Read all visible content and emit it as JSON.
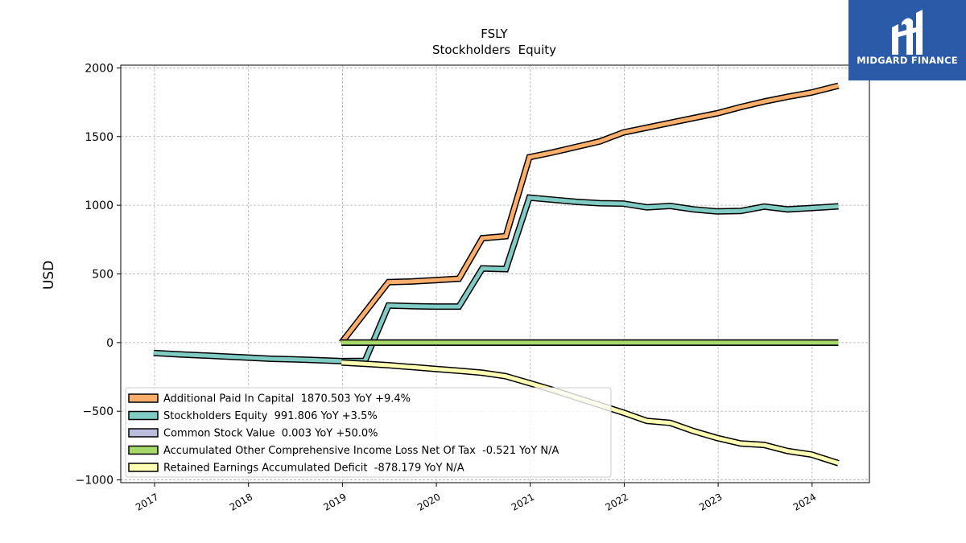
{
  "logo": {
    "text": "MIDGARD FINANCE",
    "icon": "midgard-logo-icon",
    "color": "#2a5aa8"
  },
  "chart_data": {
    "type": "line",
    "title": "FSLY",
    "subtitle": "Stockholders  Equity",
    "xlabel": "",
    "ylabel": "USD",
    "xlim": [
      2016.64,
      2024.61
    ],
    "ylim": [
      -1020,
      2020
    ],
    "xticks": [
      2017,
      2018,
      2019,
      2020,
      2021,
      2022,
      2023,
      2024
    ],
    "xtick_labels": [
      "2017",
      "2018",
      "2019",
      "2020",
      "2021",
      "2022",
      "2023",
      "2024"
    ],
    "yticks": [
      -1000,
      -500,
      0,
      500,
      1000,
      1500,
      2000
    ],
    "ytick_labels": [
      "−1000",
      "−500",
      "0",
      "500",
      "1000",
      "1500",
      "2000"
    ],
    "grid": true,
    "legend_position": "lower-left",
    "series": [
      {
        "name": "Additional Paid In Capital",
        "legend": "Additional Paid In Capital  1870.503 YoY +9.4%",
        "color": "#fdae6b",
        "points": [
          [
            2018.99,
            0
          ],
          [
            2019.49,
            440
          ],
          [
            2019.74,
            445
          ],
          [
            2019.99,
            455
          ],
          [
            2020.24,
            465
          ],
          [
            2020.49,
            760
          ],
          [
            2020.74,
            775
          ],
          [
            2020.99,
            1350
          ],
          [
            2021.24,
            1385
          ],
          [
            2021.49,
            1425
          ],
          [
            2021.74,
            1465
          ],
          [
            2021.99,
            1530
          ],
          [
            2022.24,
            1565
          ],
          [
            2022.49,
            1600
          ],
          [
            2022.74,
            1635
          ],
          [
            2022.99,
            1670
          ],
          [
            2023.24,
            1715
          ],
          [
            2023.49,
            1755
          ],
          [
            2023.74,
            1790
          ],
          [
            2023.99,
            1820
          ],
          [
            2024.28,
            1870
          ]
        ]
      },
      {
        "name": "Stockholders Equity",
        "legend": "Stockholders Equity  991.806 YoY +3.5%",
        "color": "#80cbc4",
        "points": [
          [
            2016.99,
            -75
          ],
          [
            2017.24,
            -85
          ],
          [
            2017.49,
            -93
          ],
          [
            2017.74,
            -101
          ],
          [
            2017.99,
            -109
          ],
          [
            2018.24,
            -118
          ],
          [
            2018.49,
            -122
          ],
          [
            2018.74,
            -128
          ],
          [
            2018.99,
            -135
          ],
          [
            2019.24,
            -133
          ],
          [
            2019.49,
            270
          ],
          [
            2019.74,
            265
          ],
          [
            2019.99,
            262
          ],
          [
            2020.24,
            262
          ],
          [
            2020.49,
            540
          ],
          [
            2020.74,
            535
          ],
          [
            2020.99,
            1055
          ],
          [
            2021.24,
            1040
          ],
          [
            2021.49,
            1025
          ],
          [
            2021.74,
            1015
          ],
          [
            2021.99,
            1012
          ],
          [
            2022.24,
            985
          ],
          [
            2022.49,
            995
          ],
          [
            2022.74,
            970
          ],
          [
            2022.99,
            955
          ],
          [
            2023.24,
            958
          ],
          [
            2023.49,
            990
          ],
          [
            2023.74,
            970
          ],
          [
            2023.99,
            980
          ],
          [
            2024.28,
            992
          ]
        ]
      },
      {
        "name": "Common Stock Value",
        "legend": "Common Stock Value  0.003 YoY +50.0%",
        "color": "#bcbddc",
        "points": [
          [
            2018.99,
            0
          ],
          [
            2024.28,
            0
          ]
        ]
      },
      {
        "name": "Accumulated Other Comprehensive Income Loss Net Of Tax",
        "legend": "Accumulated Other Comprehensive Income Loss Net Of Tax  -0.521 YoY N/A",
        "color": "#a6d96a",
        "points": [
          [
            2018.99,
            0
          ],
          [
            2019.49,
            0
          ],
          [
            2019.99,
            0
          ],
          [
            2020.49,
            0
          ],
          [
            2020.99,
            0
          ],
          [
            2021.49,
            0
          ],
          [
            2021.99,
            0
          ],
          [
            2022.49,
            0
          ],
          [
            2022.99,
            0
          ],
          [
            2023.49,
            0
          ],
          [
            2023.99,
            0
          ],
          [
            2024.28,
            0
          ]
        ]
      },
      {
        "name": "Retained Earnings Accumulated Deficit",
        "legend": "Retained Earnings Accumulated Deficit  -878.179 YoY N/A",
        "color": "#ffffb3",
        "points": [
          [
            2018.99,
            -145
          ],
          [
            2019.24,
            -155
          ],
          [
            2019.49,
            -165
          ],
          [
            2019.74,
            -178
          ],
          [
            2019.99,
            -192
          ],
          [
            2020.24,
            -205
          ],
          [
            2020.49,
            -220
          ],
          [
            2020.74,
            -245
          ],
          [
            2020.99,
            -295
          ],
          [
            2021.24,
            -345
          ],
          [
            2021.49,
            -400
          ],
          [
            2021.74,
            -455
          ],
          [
            2021.99,
            -510
          ],
          [
            2022.24,
            -570
          ],
          [
            2022.49,
            -585
          ],
          [
            2022.74,
            -645
          ],
          [
            2022.99,
            -695
          ],
          [
            2023.24,
            -735
          ],
          [
            2023.49,
            -745
          ],
          [
            2023.74,
            -790
          ],
          [
            2023.99,
            -815
          ],
          [
            2024.28,
            -878
          ]
        ]
      }
    ]
  }
}
